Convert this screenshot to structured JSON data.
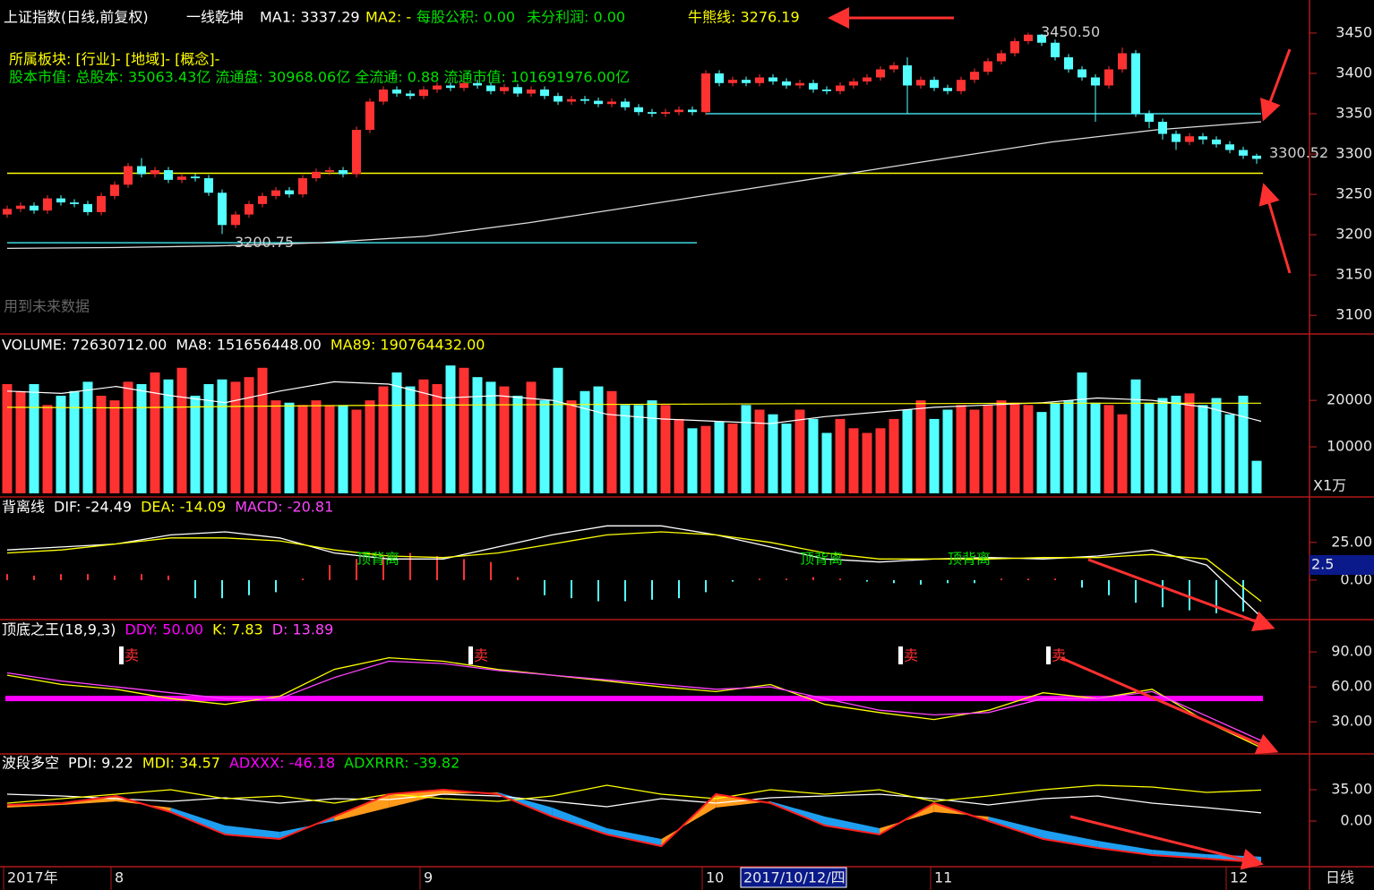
{
  "chart_data": [
    {
      "type": "candlestick",
      "title": "上证指数(日线,前复权)",
      "indicator_name": "一线乾坤",
      "header_items": [
        {
          "text": "MA1: 3337.29",
          "color": "#ffffff"
        },
        {
          "text": "MA2: -",
          "color": "#ffff00"
        },
        {
          "text": "每股公积: 0.00",
          "color": "#00e000"
        },
        {
          "text": "未分利润: 0.00",
          "color": "#00e000"
        }
      ],
      "bull_bear_line": {
        "label": "牛熊线: 3276.19",
        "value": 3276.19,
        "color": "#ffff00"
      },
      "info_lines": [
        {
          "text": "所属板块: [行业]- [地域]- [概念]-",
          "color": "#ffff00"
        },
        {
          "text": "股本市值: 总股本: 35063.43亿 流通盘: 30968.06亿 全流通: 0.88 流通市值: 101691976.00亿",
          "color": "#00e000"
        }
      ],
      "warning": "用到未来数据",
      "up_color": "#ff3232",
      "down_color": "#54ffff",
      "ylim": [
        3078,
        3491
      ],
      "yticks": [
        3100,
        3150,
        3200,
        3250,
        3300,
        3350,
        3400,
        3450
      ],
      "open": [
        3225,
        3232,
        3236,
        3230,
        3245,
        3240,
        3238,
        3228,
        3248,
        3262,
        3285,
        3275,
        3280,
        3268,
        3272,
        3270,
        3252,
        3212,
        3225,
        3238,
        3248,
        3255,
        3250,
        3270,
        3278,
        3280,
        3275,
        3330,
        3365,
        3380,
        3375,
        3372,
        3380,
        3385,
        3382,
        3388,
        3385,
        3378,
        3383,
        3375,
        3380,
        3372,
        3365,
        3368,
        3366,
        3362,
        3365,
        3358,
        3352,
        3350,
        3352,
        3355,
        3352,
        3400,
        3388,
        3392,
        3388,
        3395,
        3390,
        3385,
        3388,
        3380,
        3378,
        3385,
        3390,
        3395,
        3405,
        3410,
        3385,
        3392,
        3382,
        3378,
        3392,
        3402,
        3415,
        3425,
        3440,
        3448,
        3438,
        3420,
        3405,
        3395,
        3385,
        3405,
        3425,
        3350,
        3340,
        3325,
        3315,
        3322,
        3318,
        3312,
        3305,
        3298
      ],
      "high": [
        3236,
        3240,
        3240,
        3249,
        3249,
        3244,
        3242,
        3252,
        3266,
        3289,
        3295,
        3284,
        3284,
        3276,
        3276,
        3274,
        3256,
        3229,
        3242,
        3252,
        3259,
        3259,
        3274,
        3282,
        3284,
        3284,
        3334,
        3369,
        3384,
        3384,
        3379,
        3384,
        3389,
        3389,
        3392,
        3392,
        3389,
        3387,
        3387,
        3384,
        3384,
        3376,
        3372,
        3372,
        3370,
        3369,
        3369,
        3362,
        3356,
        3356,
        3359,
        3359,
        3404,
        3404,
        3396,
        3396,
        3399,
        3399,
        3394,
        3392,
        3392,
        3384,
        3389,
        3394,
        3399,
        3409,
        3414,
        3420,
        3396,
        3396,
        3386,
        3396,
        3406,
        3419,
        3429,
        3444,
        3450.5,
        3449,
        3442,
        3424,
        3409,
        3399,
        3409,
        3432,
        3429,
        3354,
        3344,
        3329,
        3326,
        3326,
        3322,
        3316,
        3309,
        3300.52
      ],
      "low": [
        3221,
        3228,
        3226,
        3226,
        3236,
        3234,
        3224,
        3224,
        3244,
        3258,
        3271,
        3271,
        3264,
        3264,
        3266,
        3248,
        3200.75,
        3208,
        3221,
        3234,
        3244,
        3246,
        3246,
        3266,
        3274,
        3271,
        3271,
        3326,
        3361,
        3371,
        3368,
        3368,
        3376,
        3378,
        3378,
        3381,
        3374,
        3374,
        3371,
        3371,
        3368,
        3361,
        3361,
        3362,
        3358,
        3358,
        3354,
        3348,
        3346,
        3346,
        3348,
        3348,
        3348,
        3384,
        3384,
        3384,
        3384,
        3386,
        3381,
        3381,
        3376,
        3374,
        3374,
        3381,
        3386,
        3391,
        3401,
        3350,
        3381,
        3378,
        3374,
        3374,
        3388,
        3398,
        3411,
        3421,
        3436,
        3434,
        3416,
        3401,
        3391,
        3340,
        3381,
        3401,
        3346,
        3332,
        3318,
        3305,
        3311,
        3312,
        3308,
        3301,
        3294,
        3288
      ],
      "close": [
        3232,
        3236,
        3230,
        3245,
        3240,
        3238,
        3228,
        3248,
        3262,
        3285,
        3275,
        3280,
        3268,
        3272,
        3270,
        3252,
        3212,
        3225,
        3238,
        3248,
        3255,
        3250,
        3270,
        3278,
        3280,
        3275,
        3330,
        3365,
        3380,
        3375,
        3372,
        3380,
        3385,
        3382,
        3388,
        3385,
        3378,
        3383,
        3375,
        3380,
        3372,
        3365,
        3368,
        3366,
        3362,
        3365,
        3358,
        3352,
        3350,
        3352,
        3355,
        3352,
        3400,
        3388,
        3392,
        3388,
        3395,
        3390,
        3385,
        3388,
        3380,
        3378,
        3385,
        3390,
        3395,
        3405,
        3410,
        3385,
        3392,
        3382,
        3378,
        3392,
        3402,
        3415,
        3425,
        3440,
        3448,
        3438,
        3420,
        3405,
        3395,
        3385,
        3405,
        3425,
        3350,
        3340,
        3325,
        3315,
        3322,
        3318,
        3312,
        3305,
        3298,
        3294
      ],
      "ma_line": {
        "color": "#dddddd",
        "values": [
          3183,
          3184,
          3186,
          3190,
          3198,
          3215,
          3235,
          3255,
          3275,
          3295,
          3315,
          3330,
          3340
        ]
      },
      "support_lines": [
        {
          "value": 3190,
          "from": 0,
          "to": 51,
          "color": "#40d8e0"
        },
        {
          "value": 3350,
          "from": 52,
          "to": 93,
          "color": "#40d8e0"
        }
      ],
      "annotations": [
        {
          "text": "3450.50",
          "at": 76
        },
        {
          "text": "3200.75",
          "at": 16
        },
        {
          "text": "3300.52",
          "at": 93
        }
      ]
    },
    {
      "type": "volume",
      "legend": [
        {
          "text": "VOLUME: 72630712.00",
          "color": "#ffffff"
        },
        {
          "text": "MA8: 151656448.00",
          "color": "#ffffff"
        },
        {
          "text": "MA89: 190764432.00",
          "color": "#ffff00"
        }
      ],
      "unit": "X1万",
      "ylim": [
        0,
        33700
      ],
      "yticks": [
        10000,
        20000
      ],
      "values": [
        23500,
        22000,
        23500,
        19000,
        21000,
        22000,
        24000,
        21000,
        20000,
        24000,
        23500,
        26000,
        24500,
        27000,
        21000,
        23500,
        24500,
        24000,
        25000,
        27000,
        20000,
        19500,
        19000,
        20000,
        19000,
        19000,
        18000,
        20000,
        23000,
        26000,
        23000,
        24500,
        23500,
        27500,
        27000,
        25000,
        24000,
        23000,
        21000,
        24000,
        20000,
        27000,
        20000,
        22000,
        23000,
        22000,
        19000,
        19000,
        20000,
        19000,
        16000,
        14000,
        14500,
        15500,
        15000,
        19000,
        18000,
        17000,
        15000,
        18000,
        16000,
        13000,
        16000,
        14000,
        13000,
        14000,
        16000,
        18000,
        20000,
        16000,
        18000,
        19000,
        18000,
        19000,
        20000,
        19500,
        19000,
        17500,
        19500,
        20000,
        26000,
        19500,
        19000,
        17000,
        24500,
        19500,
        20500,
        21000,
        21500,
        19000,
        20500,
        17000,
        21000,
        7000
      ],
      "lines": [
        {
          "color": "#ffffff",
          "values": [
            22000,
            21500,
            23000,
            21000,
            19500,
            22000,
            24000,
            23500,
            20500,
            21000,
            20000,
            17000,
            16000,
            15500,
            15000,
            16500,
            17500,
            18500,
            19000,
            19500,
            20500,
            20000,
            18500,
            15500
          ]
        },
        {
          "color": "#ffff00",
          "values": [
            18500,
            18400,
            18700,
            18900,
            19000,
            19100,
            19200,
            19300,
            19300,
            19400,
            19400,
            19400
          ]
        }
      ]
    },
    {
      "type": "macd",
      "title": "背离线",
      "ylim": [
        -25,
        54
      ],
      "yticks": [
        {
          "value": 25,
          "label": "25.00"
        },
        {
          "value": 0,
          "label": "0.00"
        }
      ],
      "marker": "2.5",
      "series": [
        {
          "name": "DIF: -24.49",
          "color": "#ffffff",
          "values": [
            20,
            22,
            24,
            30,
            32,
            28,
            18,
            14,
            14,
            22,
            30,
            36,
            36,
            30,
            22,
            14,
            12,
            14,
            15,
            14,
            16,
            20,
            10,
            -24.49
          ]
        },
        {
          "name": "DEA: -14.09",
          "color": "#ffff00",
          "values": [
            18,
            20,
            24,
            28,
            28,
            26,
            20,
            16,
            15,
            18,
            24,
            30,
            32,
            30,
            25,
            18,
            14,
            14,
            14,
            15,
            15,
            17,
            14,
            -14.09
          ]
        }
      ],
      "histogram": {
        "name": "MACD: -20.81",
        "color": "#ff44ff",
        "up_color": "#ff3232",
        "down_color": "#54ffff",
        "values": [
          4,
          3,
          4,
          4,
          3,
          4,
          3,
          -12,
          -12,
          -10,
          -8,
          1,
          10,
          14,
          16,
          18,
          16,
          14,
          12,
          2,
          -10,
          -12,
          -14,
          -14,
          -13,
          -12,
          -8,
          -1,
          1,
          1,
          2,
          1,
          -1,
          -2,
          -3,
          -2,
          -2,
          1,
          1,
          1,
          -5,
          -10,
          -15,
          -18,
          -20,
          -22,
          -20.81
        ]
      },
      "divergence": {
        "label": "顶背离",
        "at": [
          26,
          59,
          70
        ]
      }
    },
    {
      "type": "kdj",
      "title": "顶底之王(18,9,3)",
      "ylim": [
        4,
        117
      ],
      "yticks": [
        {
          "value": 90,
          "label": "90.00"
        },
        {
          "value": 60,
          "label": "60.00"
        },
        {
          "value": 30,
          "label": "30.00"
        }
      ],
      "ddy": {
        "name": "DDY: 50.00",
        "value": 50,
        "color": "#ff00ff"
      },
      "series": [
        {
          "name": "K: 7.83",
          "color": "#ffff00",
          "values": [
            70,
            62,
            58,
            50,
            45,
            52,
            75,
            85,
            82,
            75,
            70,
            65,
            60,
            56,
            62,
            45,
            38,
            32,
            40,
            55,
            50,
            58,
            30,
            7.83
          ]
        },
        {
          "name": "D: 13.89",
          "color": "#ff44ff",
          "values": [
            72,
            65,
            60,
            55,
            50,
            50,
            68,
            82,
            80,
            74,
            70,
            66,
            62,
            58,
            60,
            50,
            40,
            36,
            38,
            50,
            50,
            56,
            35,
            13.89
          ]
        }
      ],
      "sell_signals": {
        "label": "卖",
        "at": [
          9,
          35,
          67,
          78
        ]
      }
    },
    {
      "type": "dmi",
      "title": "波段多空",
      "ylim": [
        -50,
        74
      ],
      "yticks": [
        {
          "value": 35,
          "label": "35.00"
        },
        {
          "value": 0,
          "label": "0.00"
        }
      ],
      "up_fill": "#ff9a1a",
      "down_fill": "#1e9ef0",
      "series": [
        {
          "name": "PDI: 9.22",
          "color": "#ffffff",
          "values": [
            30,
            28,
            25,
            22,
            26,
            20,
            25,
            24,
            30,
            28,
            22,
            16,
            25,
            20,
            26,
            28,
            30,
            25,
            18,
            25,
            28,
            20,
            15,
            9.22
          ]
        },
        {
          "name": "MDI: 34.57",
          "color": "#ffff00",
          "values": [
            20,
            25,
            30,
            35,
            25,
            28,
            20,
            30,
            25,
            22,
            28,
            40,
            30,
            25,
            35,
            30,
            35,
            22,
            28,
            35,
            40,
            38,
            32,
            34.57
          ]
        },
        {
          "name": "ADXXX: -46.18",
          "color": "#ff00ff",
          "line_color": "#ff2020",
          "values": [
            18,
            20,
            28,
            10,
            -15,
            -20,
            5,
            30,
            35,
            30,
            5,
            -15,
            -28,
            30,
            20,
            -5,
            -15,
            20,
            0,
            -20,
            -30,
            -38,
            -42,
            -46.18
          ]
        },
        {
          "name": "ADXRRR: -39.82",
          "color": "#00e000",
          "values": [
            15,
            18,
            22,
            15,
            -5,
            -12,
            0,
            15,
            30,
            32,
            15,
            -8,
            -20,
            15,
            22,
            5,
            -8,
            10,
            5,
            -10,
            -22,
            -32,
            -37,
            -39.82
          ]
        }
      ]
    }
  ],
  "x_axis": {
    "labels": [
      {
        "label": "2017年",
        "at": 0
      },
      {
        "label": "8",
        "at": 8
      },
      {
        "label": "9",
        "at": 31
      },
      {
        "label": "10",
        "at": 52
      },
      {
        "label": "11",
        "at": 69
      },
      {
        "label": "12",
        "at": 91
      }
    ],
    "cursor": {
      "label": "2017/10/12/四",
      "at": 55
    },
    "period": "日线"
  }
}
